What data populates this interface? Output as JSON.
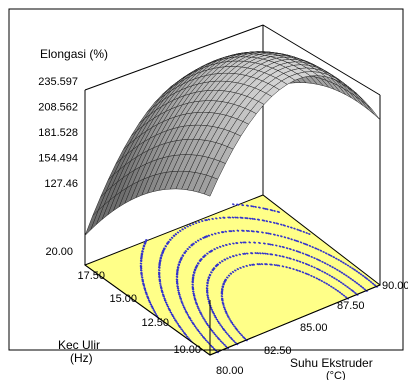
{
  "chart_data": {
    "type": "surface",
    "zlabel": "Elongasi (%)",
    "xlabel_line1": "Suhu Ekstruder",
    "xlabel_line2": "(°C)",
    "ylabel_line1": "Kec Ulir",
    "ylabel_line2": "(Hz)",
    "x_ticks": [
      "80.00",
      "82.50",
      "85.00",
      "87.50",
      "90.00"
    ],
    "y_ticks": [
      "10.00",
      "12.50",
      "15.00",
      "17.50",
      "20.00"
    ],
    "z_ticks": [
      "127.46",
      "154.494",
      "181.528",
      "208.562",
      "235.597"
    ],
    "x_range": [
      80,
      90
    ],
    "y_range": [
      10,
      20
    ],
    "z_range": [
      127.46,
      235.597
    ],
    "surface_color": "#8c8c8c",
    "contour_plane_color": "#ffff88",
    "contour_line_color": "#3333cc"
  }
}
